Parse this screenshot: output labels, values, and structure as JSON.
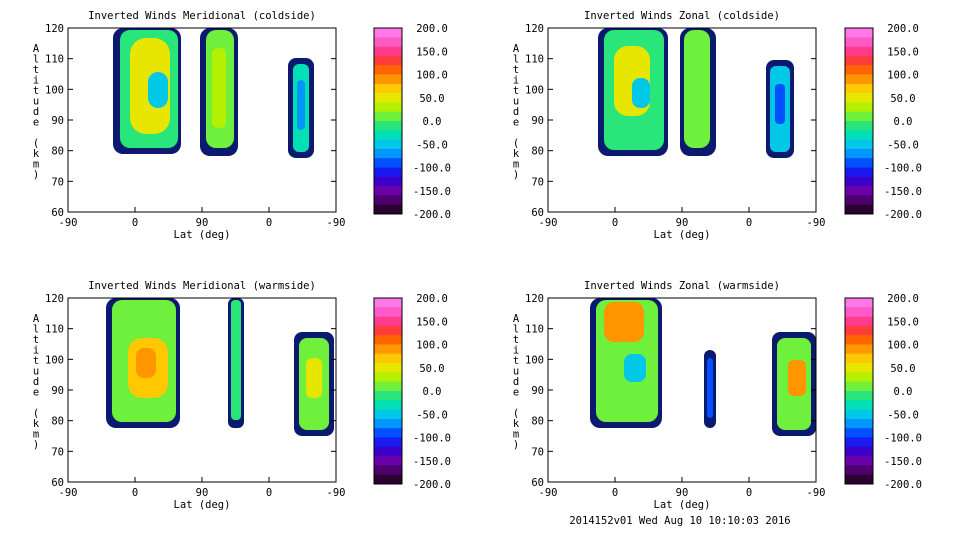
{
  "footer_text": "2014152v01 Wed Aug 10 10:10:03 2016",
  "colorbar": {
    "tick_labels": [
      "200.0",
      "150.0",
      "100.0",
      "50.0",
      "0.0",
      "-50.0",
      "-100.0",
      "-150.0",
      "-200.0"
    ],
    "tick_values": [
      200,
      150,
      100,
      50,
      0,
      -50,
      -100,
      -150,
      -200
    ],
    "range": [
      -200,
      200
    ],
    "colors": [
      "#2a0030",
      "#50006e",
      "#6a00a8",
      "#3b00c8",
      "#1a1af0",
      "#0050ff",
      "#0096ff",
      "#00c8e6",
      "#00e0b4",
      "#28e67a",
      "#6ef03c",
      "#b4f000",
      "#e6e600",
      "#ffc800",
      "#ff9600",
      "#ff6400",
      "#ff3c3c",
      "#ff3c8c",
      "#ff5ac8",
      "#ff78e6"
    ]
  },
  "chart_data": [
    {
      "type": "heatmap",
      "title": "Inverted Winds Meridional (coldside)",
      "xlabel": "Lat (deg)",
      "ylabel": "Altitude (km)",
      "x_tick_labels": [
        "-90",
        "0",
        "90",
        "0",
        "-90"
      ],
      "y_tick_labels": [
        "120",
        "110",
        "100",
        "90",
        "80",
        "70",
        "60"
      ],
      "ylim": [
        60,
        120
      ]
    },
    {
      "type": "heatmap",
      "title": "Inverted Winds Zonal (coldside)",
      "xlabel": "Lat (deg)",
      "ylabel": "Altitude (km)",
      "x_tick_labels": [
        "-90",
        "0",
        "90",
        "0",
        "-90"
      ],
      "y_tick_labels": [
        "120",
        "110",
        "100",
        "90",
        "80",
        "70",
        "60"
      ],
      "ylim": [
        60,
        120
      ]
    },
    {
      "type": "heatmap",
      "title": "Inverted Winds Meridional (warmside)",
      "xlabel": "Lat (deg)",
      "ylabel": "Altitude (km)",
      "x_tick_labels": [
        "-90",
        "0",
        "90",
        "0",
        "-90"
      ],
      "y_tick_labels": [
        "120",
        "110",
        "100",
        "90",
        "80",
        "70",
        "60"
      ],
      "ylim": [
        60,
        120
      ]
    },
    {
      "type": "heatmap",
      "title": "Inverted Winds Zonal (warmside)",
      "xlabel": "Lat (deg)",
      "ylabel": "Altitude (km)",
      "x_tick_labels": [
        "-90",
        "0",
        "90",
        "0",
        "-90"
      ],
      "y_tick_labels": [
        "120",
        "110",
        "100",
        "90",
        "80",
        "70",
        "60"
      ],
      "ylim": [
        60,
        120
      ]
    }
  ]
}
